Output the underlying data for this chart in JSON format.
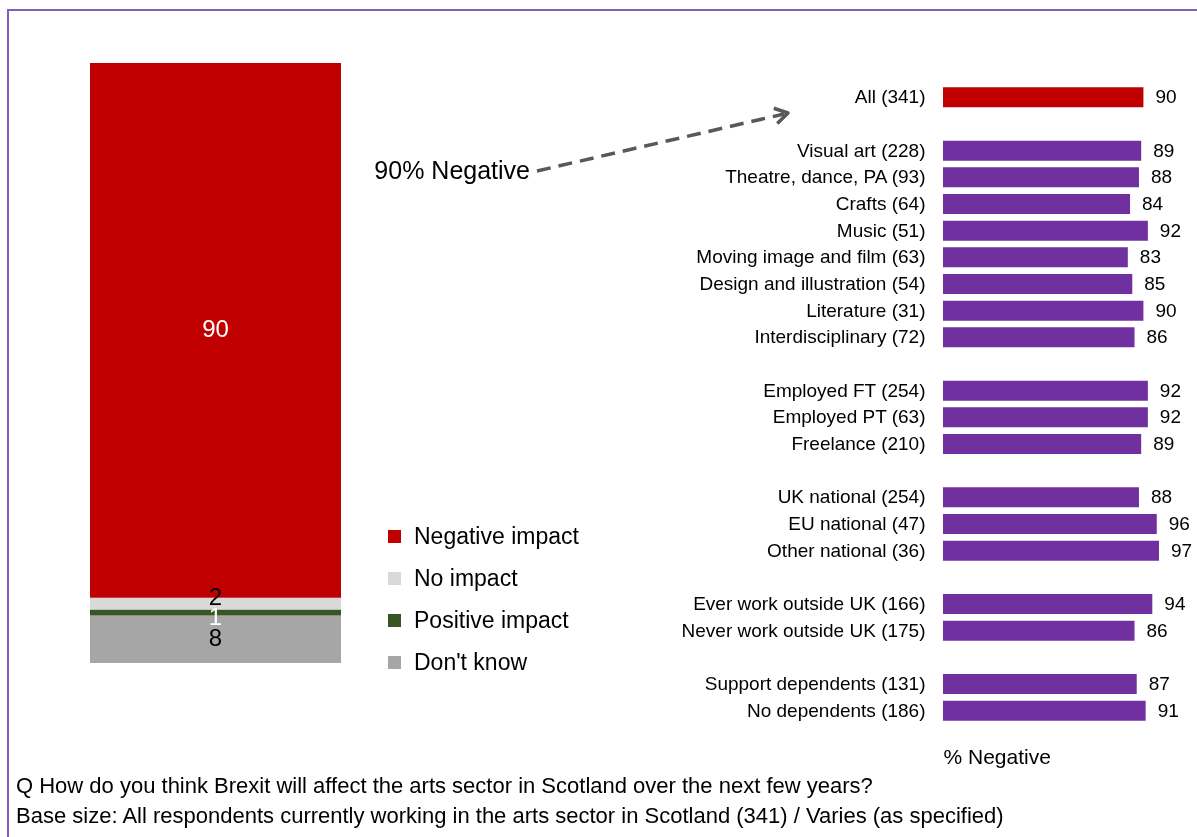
{
  "chart_data": [
    {
      "type": "bar",
      "stacked": true,
      "categories": [
        null
      ],
      "series": [
        {
          "name": "Don't know",
          "color": "#a6a6a6",
          "values": [
            8
          ]
        },
        {
          "name": "Positive impact",
          "color": "#375623",
          "values": [
            1
          ]
        },
        {
          "name": "No impact",
          "color": "#d9d9d9",
          "values": [
            2
          ]
        },
        {
          "name": "Negative impact",
          "color": "#c00000",
          "values": [
            90
          ]
        }
      ],
      "data_labels": true,
      "legend": "right",
      "tick_labels": false,
      "annotations": [
        "90% Negative",
        "Q How do you think Brexit will affect the arts sector in Scotland over the next few years?",
        "Base size: All respondents currently working in the arts sector in Scotland (341) / Varies (as specified)"
      ]
    },
    {
      "type": "bar",
      "orientation": "horizontal",
      "categories": [
        "All (341)",
        null,
        "Visual art (228)",
        "Theatre, dance, PA (93)",
        "Crafts (64)",
        "Music (51)",
        "Moving image and film (63)",
        "Design and illustration (54)",
        "Literature (31)",
        "Interdisciplinary (72)",
        null,
        "Employed FT (254)",
        "Employed PT (63)",
        "Freelance (210)",
        null,
        "UK national (254)",
        "EU national (47)",
        "Other national (36)",
        null,
        "Ever work outside UK (166)",
        "Never work outside UK (175)",
        null,
        "Support dependents (131)",
        "No dependents (186)"
      ],
      "values": [
        90,
        null,
        89,
        88,
        84,
        92,
        83,
        85,
        90,
        86,
        null,
        92,
        92,
        89,
        null,
        88,
        96,
        97,
        null,
        94,
        86,
        null,
        87,
        91
      ],
      "colors": [
        "#c00000",
        null,
        "#7030a0",
        "#7030a0",
        "#7030a0",
        "#7030a0",
        "#7030a0",
        "#7030a0",
        "#7030a0",
        "#7030a0",
        null,
        "#7030a0",
        "#7030a0",
        "#7030a0",
        null,
        "#7030a0",
        "#7030a0",
        "#7030a0",
        null,
        "#7030a0",
        "#7030a0",
        null,
        "#7030a0",
        "#7030a0"
      ],
      "xlabel": "% Negative",
      "data_labels": true,
      "tick_labels": "y"
    }
  ]
}
